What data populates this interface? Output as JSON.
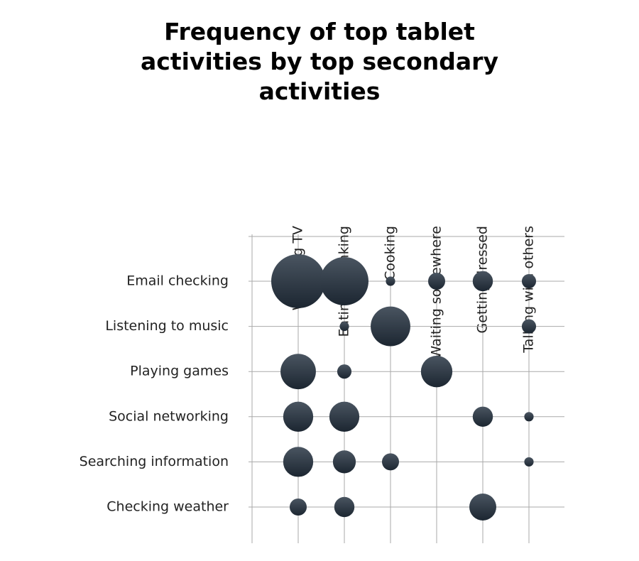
{
  "chart_data": {
    "type": "bubble-matrix",
    "title": "Frequency of top tablet activities by top secondary activities",
    "categories": [
      "Watching TV",
      "Eating / drinking",
      "Cooking",
      "Waiting somewhere",
      "Getting dressed",
      "Talking with others"
    ],
    "series": [
      {
        "name": "Email checking",
        "color": "#2c3844",
        "values": [
          100,
          80,
          3,
          10,
          14,
          7
        ]
      },
      {
        "name": "Listening to music",
        "color": "#2c3844",
        "values": [
          null,
          3,
          54,
          null,
          null,
          7
        ]
      },
      {
        "name": "Playing games",
        "color": "#2c3844",
        "values": [
          43,
          7,
          null,
          34,
          null,
          null
        ]
      },
      {
        "name": "Social networking",
        "color": "#2c3844",
        "values": [
          31,
          31,
          null,
          null,
          14,
          3
        ]
      },
      {
        "name": "Searching information",
        "color": "#2c3844",
        "values": [
          31,
          18,
          10,
          null,
          null,
          3
        ]
      },
      {
        "name": "Checking weather",
        "color": "#2c3844",
        "values": [
          10,
          14,
          null,
          null,
          25,
          null
        ]
      }
    ],
    "grid": true
  }
}
